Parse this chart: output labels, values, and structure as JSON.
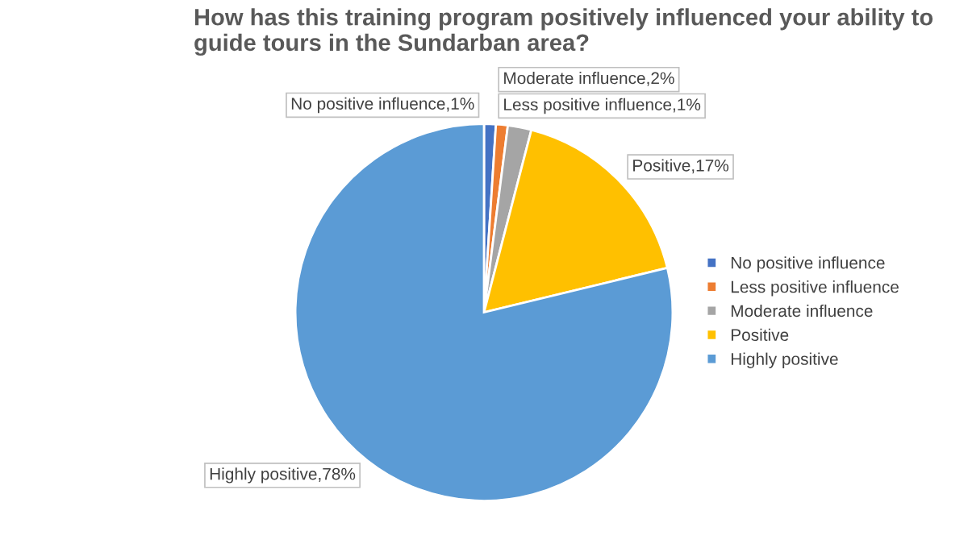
{
  "chart_data": {
    "type": "pie",
    "title": "How has this training program positively influenced your ability to guide tours in the Sundarban area?",
    "categories": [
      "No positive influence",
      "Less positive influence",
      "Moderate influence",
      "Positive",
      "Highly positive"
    ],
    "values": [
      1,
      1,
      2,
      17,
      78
    ],
    "colors": [
      "#4472c4",
      "#ed7d31",
      "#a5a5a5",
      "#ffc000",
      "#5b9bd5"
    ],
    "value_labels": [
      "No positive influence,1%",
      "Less positive influence,1%",
      "Moderate influence,2%",
      "Positive,17%",
      "Highly positive,78%"
    ],
    "legend": "right"
  }
}
